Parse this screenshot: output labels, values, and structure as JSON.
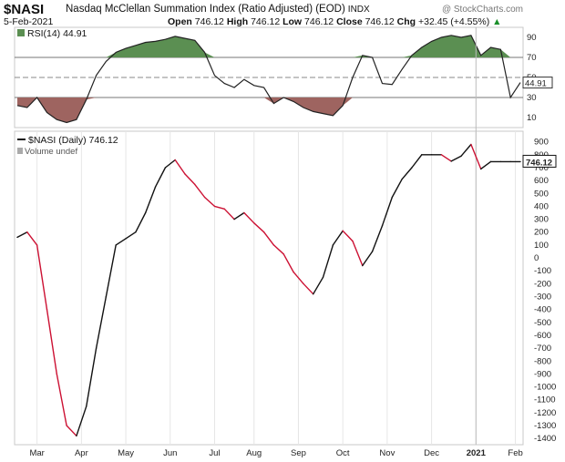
{
  "header": {
    "symbol": "$NASI",
    "name": "Nasdaq McClellan Summation Index (Ratio Adjusted) (EOD)",
    "exchange": "INDX",
    "date": "5-Feb-2021",
    "copyright": "@ StockCharts.com",
    "quote": [
      {
        "label": "Open",
        "value": "746.12"
      },
      {
        "label": "High",
        "value": "746.12"
      },
      {
        "label": "Low",
        "value": "746.12"
      },
      {
        "label": "Close",
        "value": "746.12"
      },
      {
        "label": "Chg",
        "value": "+32.45 (+4.55%)",
        "arrow": "▲"
      }
    ]
  },
  "chart_data": [
    {
      "type": "line",
      "panel": "indicator",
      "legend": "RSI(14) 44.91",
      "last_value_label": "44.91",
      "yticks": [
        10,
        30,
        50,
        70,
        90
      ],
      "ylim": [
        0,
        100
      ],
      "overbought": 70,
      "oversold": 30,
      "midline": 50,
      "colors": {
        "above": "#5b8f52",
        "below": "#9e6460",
        "line": "#222222"
      },
      "x": [
        "Feb-15",
        "Feb-22",
        "Mar-1",
        "Mar-8",
        "Mar-15",
        "Mar-22",
        "Mar-29",
        "Apr-5",
        "Apr-12",
        "Apr-19",
        "Apr-26",
        "May-3",
        "May-10",
        "May-17",
        "May-24",
        "May-31",
        "Jun-7",
        "Jun-14",
        "Jun-21",
        "Jun-28",
        "Jul-5",
        "Jul-12",
        "Jul-19",
        "Jul-26",
        "Aug-2",
        "Aug-9",
        "Aug-16",
        "Aug-23",
        "Aug-30",
        "Sep-6",
        "Sep-13",
        "Sep-20",
        "Sep-27",
        "Oct-4",
        "Oct-11",
        "Oct-18",
        "Oct-25",
        "Nov-1",
        "Nov-8",
        "Nov-15",
        "Nov-22",
        "Nov-29",
        "Dec-6",
        "Dec-13",
        "Dec-20",
        "Dec-27",
        "Jan-3",
        "Jan-10",
        "Jan-17",
        "Jan-24",
        "Jan-31",
        "Feb-5"
      ],
      "values": [
        22,
        20,
        30,
        15,
        8,
        5,
        8,
        28,
        52,
        66,
        75,
        79,
        82,
        85,
        86,
        88,
        91,
        89,
        87,
        75,
        52,
        44,
        40,
        48,
        42,
        40,
        24,
        30,
        26,
        20,
        16,
        14,
        12,
        22,
        50,
        72,
        70,
        44,
        43,
        58,
        72,
        80,
        86,
        90,
        92,
        90,
        92,
        72,
        80,
        78,
        30,
        44.91
      ]
    },
    {
      "type": "line",
      "panel": "price",
      "legend": "$NASI (Daily) 746.12",
      "volume_legend": "Volume undef",
      "last_value_label": "746.12",
      "ylim": [
        -1420,
        940
      ],
      "yticks": [
        900,
        800,
        700,
        600,
        500,
        400,
        300,
        200,
        100,
        0,
        -100,
        -200,
        -300,
        -400,
        -500,
        -600,
        -700,
        -800,
        -900,
        -1000,
        -1100,
        -1200,
        -1300,
        -1400
      ],
      "xticks": [
        "Mar",
        "Apr",
        "May",
        "Jun",
        "Jul",
        "Aug",
        "Sep",
        "Oct",
        "Nov",
        "Dec",
        "2021",
        "Feb"
      ],
      "colors": {
        "up": "#111111",
        "down": "#cc1133"
      },
      "x": [
        "Feb-15",
        "Feb-22",
        "Mar-1",
        "Mar-8",
        "Mar-15",
        "Mar-22",
        "Mar-29",
        "Apr-5",
        "Apr-12",
        "Apr-19",
        "Apr-26",
        "May-3",
        "May-10",
        "May-17",
        "May-24",
        "May-31",
        "Jun-7",
        "Jun-14",
        "Jun-21",
        "Jun-28",
        "Jul-5",
        "Jul-12",
        "Jul-19",
        "Jul-26",
        "Aug-2",
        "Aug-9",
        "Aug-16",
        "Aug-23",
        "Aug-30",
        "Sep-6",
        "Sep-13",
        "Sep-20",
        "Sep-27",
        "Oct-4",
        "Oct-11",
        "Oct-18",
        "Oct-25",
        "Nov-1",
        "Nov-8",
        "Nov-15",
        "Nov-22",
        "Nov-29",
        "Dec-6",
        "Dec-13",
        "Dec-20",
        "Dec-27",
        "Jan-3",
        "Jan-10",
        "Jan-17",
        "Jan-24",
        "Jan-31",
        "Feb-5"
      ],
      "values": [
        160,
        200,
        100,
        -400,
        -900,
        -1300,
        -1380,
        -1150,
        -700,
        -300,
        100,
        150,
        200,
        350,
        550,
        700,
        760,
        650,
        570,
        470,
        400,
        380,
        300,
        350,
        270,
        200,
        100,
        30,
        -110,
        -200,
        -280,
        -150,
        100,
        210,
        130,
        -60,
        50,
        250,
        470,
        610,
        700,
        800,
        800,
        800,
        750,
        790,
        880,
        690,
        746.12,
        746.12,
        746.12,
        746.12
      ]
    }
  ]
}
